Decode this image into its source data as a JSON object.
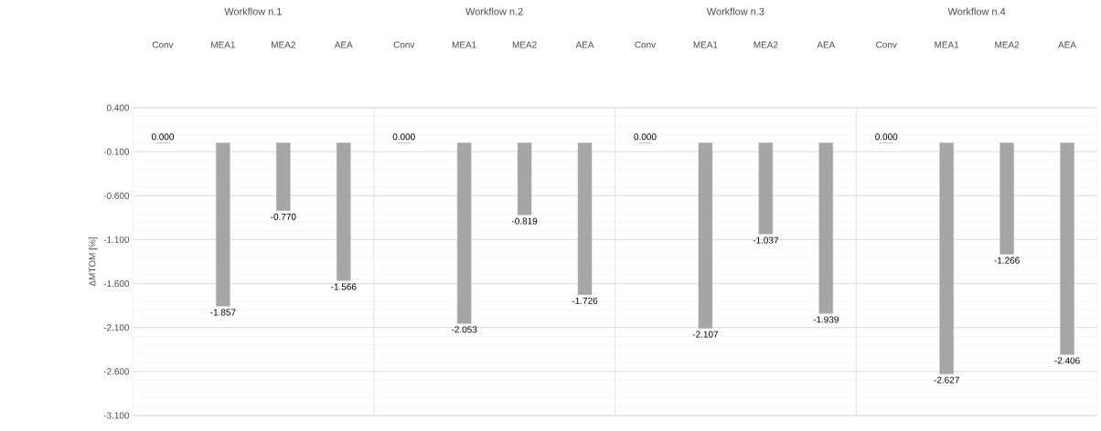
{
  "chart_data": [
    {
      "type": "bar",
      "title": "Workflow n.1",
      "ylabel": "ΔMTOM [%]",
      "categories": [
        "Conv",
        "MEA1",
        "MEA2",
        "AEA"
      ],
      "values": [
        0,
        -1.857,
        -0.77,
        -1.566
      ],
      "value_labels": [
        "0.000",
        "-1.857",
        "-0.770",
        "-1.566"
      ],
      "color": "#a6a6a6",
      "ylim": [
        -3.1,
        0.4
      ],
      "yticks": [
        {
          "value": 0.4,
          "label": "0.400"
        },
        {
          "value": -0.1,
          "label": "-0.100"
        },
        {
          "value": -0.6,
          "label": "-0.600"
        },
        {
          "value": -1.1,
          "label": "-1.100"
        },
        {
          "value": -1.6,
          "label": "-1.600"
        },
        {
          "value": -2.1,
          "label": "-2.100"
        },
        {
          "value": -2.6,
          "label": "-2.600"
        },
        {
          "value": -3.1,
          "label": "-3.100"
        }
      ],
      "grid": "y"
    },
    {
      "type": "bar",
      "title": "Workflow n.2",
      "categories": [
        "Conv",
        "MEA1",
        "MEA2",
        "AEA"
      ],
      "values": [
        0,
        -2.053,
        -0.819,
        -1.726
      ],
      "value_labels": [
        "0.000",
        "-2.053",
        "-0.819",
        "-1.726"
      ],
      "color": "#a6a6a6",
      "ylim": [
        -3.1,
        0.4
      ],
      "yticks": [
        {
          "value": 0.4,
          "label": null
        },
        {
          "value": -0.1,
          "label": null
        },
        {
          "value": -0.6,
          "label": null
        },
        {
          "value": -1.1,
          "label": null
        },
        {
          "value": -1.6,
          "label": null
        },
        {
          "value": -2.1,
          "label": null
        },
        {
          "value": -2.6,
          "label": null
        },
        {
          "value": -3.1,
          "label": null
        }
      ],
      "grid": "y",
      "tick_labels": "x"
    },
    {
      "type": "bar",
      "title": "Workflow n.3",
      "categories": [
        "Conv",
        "MEA1",
        "MEA2",
        "AEA"
      ],
      "values": [
        0,
        -2.107,
        -1.037,
        -1.939
      ],
      "value_labels": [
        "0.000",
        "-2.107",
        "-1.037",
        "-1.939"
      ],
      "color": "#a6a6a6",
      "ylim": [
        -3.1,
        0.4
      ],
      "yticks": [
        {
          "value": 0.4,
          "label": null
        },
        {
          "value": -0.1,
          "label": null
        },
        {
          "value": -0.6,
          "label": null
        },
        {
          "value": -1.1,
          "label": null
        },
        {
          "value": -1.6,
          "label": null
        },
        {
          "value": -2.1,
          "label": null
        },
        {
          "value": -2.6,
          "label": null
        },
        {
          "value": -3.1,
          "label": null
        }
      ],
      "grid": "y",
      "tick_labels": "x"
    },
    {
      "type": "bar",
      "title": "Workflow n.4",
      "categories": [
        "Conv",
        "MEA1",
        "MEA2",
        "AEA"
      ],
      "values": [
        0,
        -2.627,
        -1.266,
        -2.406
      ],
      "value_labels": [
        "0.000",
        "-2.627",
        "-1.266",
        "-2.406"
      ],
      "color": "#a6a6a6",
      "ylim": [
        -3.1,
        0.4
      ],
      "yticks": [
        {
          "value": 0.4,
          "label": null
        },
        {
          "value": -0.1,
          "label": null
        },
        {
          "value": -0.6,
          "label": null
        },
        {
          "value": -1.1,
          "label": null
        },
        {
          "value": -1.6,
          "label": null
        },
        {
          "value": -2.1,
          "label": null
        },
        {
          "value": -2.6,
          "label": null
        },
        {
          "value": -3.1,
          "label": null
        }
      ],
      "grid": "y",
      "tick_labels": "x"
    }
  ]
}
